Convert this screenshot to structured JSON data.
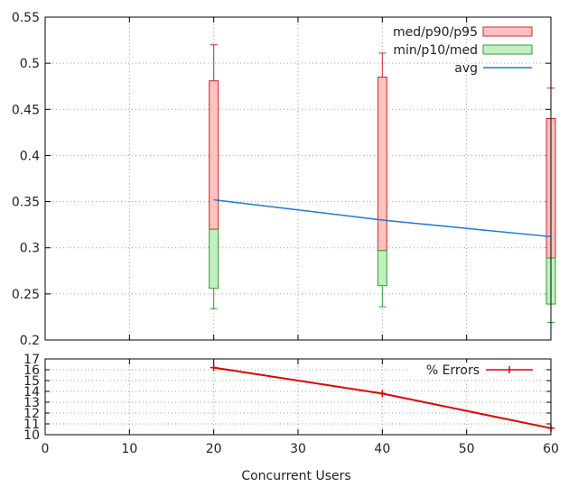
{
  "chart_data": [
    {
      "type": "box",
      "xlabel": "",
      "ylabel": "",
      "ylim": [
        0.2,
        0.55
      ],
      "xlim": [
        0,
        60
      ],
      "y_ticks": [
        0.2,
        0.25,
        0.3,
        0.35,
        0.4,
        0.45,
        0.5,
        0.55
      ],
      "x_gridlines": [
        0,
        10,
        20,
        30,
        40,
        50,
        60
      ],
      "grid": true,
      "legend_position": "top-right",
      "x": [
        20,
        40,
        60
      ],
      "min": [
        0.234,
        0.236,
        0.219
      ],
      "p10": [
        0.256,
        0.259,
        0.239
      ],
      "med": [
        0.32,
        0.297,
        0.289
      ],
      "p90": [
        0.481,
        0.485,
        0.44
      ],
      "p95": [
        0.52,
        0.511,
        0.473
      ],
      "avg": [
        0.352,
        0.33,
        0.312
      ],
      "series": [
        {
          "name": "med/p90/p95",
          "fill": "#ffc0c0",
          "stroke": "#d62728"
        },
        {
          "name": "min/p10/med",
          "fill": "#c0f0c0",
          "stroke": "#2ca02c"
        },
        {
          "name": "avg",
          "stroke": "#1f77d4"
        }
      ]
    },
    {
      "type": "line",
      "xlabel": "Concurrent Users",
      "ylabel": "",
      "xlim": [
        0,
        60
      ],
      "ylim": [
        10,
        17
      ],
      "x_ticks": [
        0,
        10,
        20,
        30,
        40,
        50,
        60
      ],
      "y_ticks": [
        10,
        11,
        12,
        13,
        14,
        15,
        16,
        17
      ],
      "grid": true,
      "legend_position": "top-right",
      "series": [
        {
          "name": "% Errors",
          "color": "#e00000",
          "x": [
            20,
            40,
            60
          ],
          "y": [
            16.2,
            13.8,
            10.6
          ]
        }
      ]
    }
  ]
}
